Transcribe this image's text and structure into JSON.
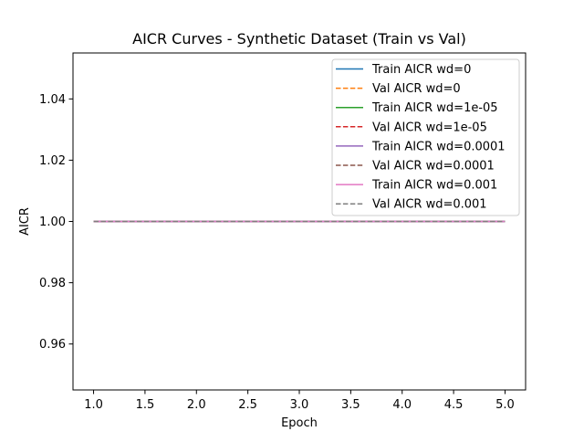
{
  "chart_data": {
    "type": "line",
    "title": "AICR Curves - Synthetic Dataset (Train vs Val)",
    "xlabel": "Epoch",
    "ylabel": "AICR",
    "xlim": [
      0.8,
      5.2
    ],
    "ylim": [
      0.945,
      1.055
    ],
    "x_ticks": [
      1.0,
      1.5,
      2.0,
      2.5,
      3.0,
      3.5,
      4.0,
      4.5,
      5.0
    ],
    "x_tick_labels": [
      "1.0",
      "1.5",
      "2.0",
      "2.5",
      "3.0",
      "3.5",
      "4.0",
      "4.5",
      "5.0"
    ],
    "y_ticks": [
      0.96,
      0.98,
      1.0,
      1.02,
      1.04
    ],
    "y_tick_labels": [
      "0.96",
      "0.98",
      "1.00",
      "1.02",
      "1.04"
    ],
    "grid": false,
    "legend_position": "top-right",
    "x": [
      1,
      2,
      3,
      4,
      5
    ],
    "series": [
      {
        "name": "Train AICR wd=0",
        "values": [
          1.0,
          1.0,
          1.0,
          1.0,
          1.0
        ],
        "color": "#1f77b4",
        "style": "solid"
      },
      {
        "name": "Val AICR wd=0",
        "values": [
          1.0,
          1.0,
          1.0,
          1.0,
          1.0
        ],
        "color": "#ff7f0e",
        "style": "dashed"
      },
      {
        "name": "Train AICR wd=1e-05",
        "values": [
          1.0,
          1.0,
          1.0,
          1.0,
          1.0
        ],
        "color": "#2ca02c",
        "style": "solid"
      },
      {
        "name": "Val AICR wd=1e-05",
        "values": [
          1.0,
          1.0,
          1.0,
          1.0,
          1.0
        ],
        "color": "#d62728",
        "style": "dashed"
      },
      {
        "name": "Train AICR wd=0.0001",
        "values": [
          1.0,
          1.0,
          1.0,
          1.0,
          1.0
        ],
        "color": "#9467bd",
        "style": "solid"
      },
      {
        "name": "Val AICR wd=0.0001",
        "values": [
          1.0,
          1.0,
          1.0,
          1.0,
          1.0
        ],
        "color": "#8c564b",
        "style": "dashed"
      },
      {
        "name": "Train AICR wd=0.001",
        "values": [
          1.0,
          1.0,
          1.0,
          1.0,
          1.0
        ],
        "color": "#e377c2",
        "style": "solid"
      },
      {
        "name": "Val AICR wd=0.001",
        "values": [
          1.0,
          1.0,
          1.0,
          1.0,
          1.0
        ],
        "color": "#7f7f7f",
        "style": "dashed"
      }
    ]
  }
}
